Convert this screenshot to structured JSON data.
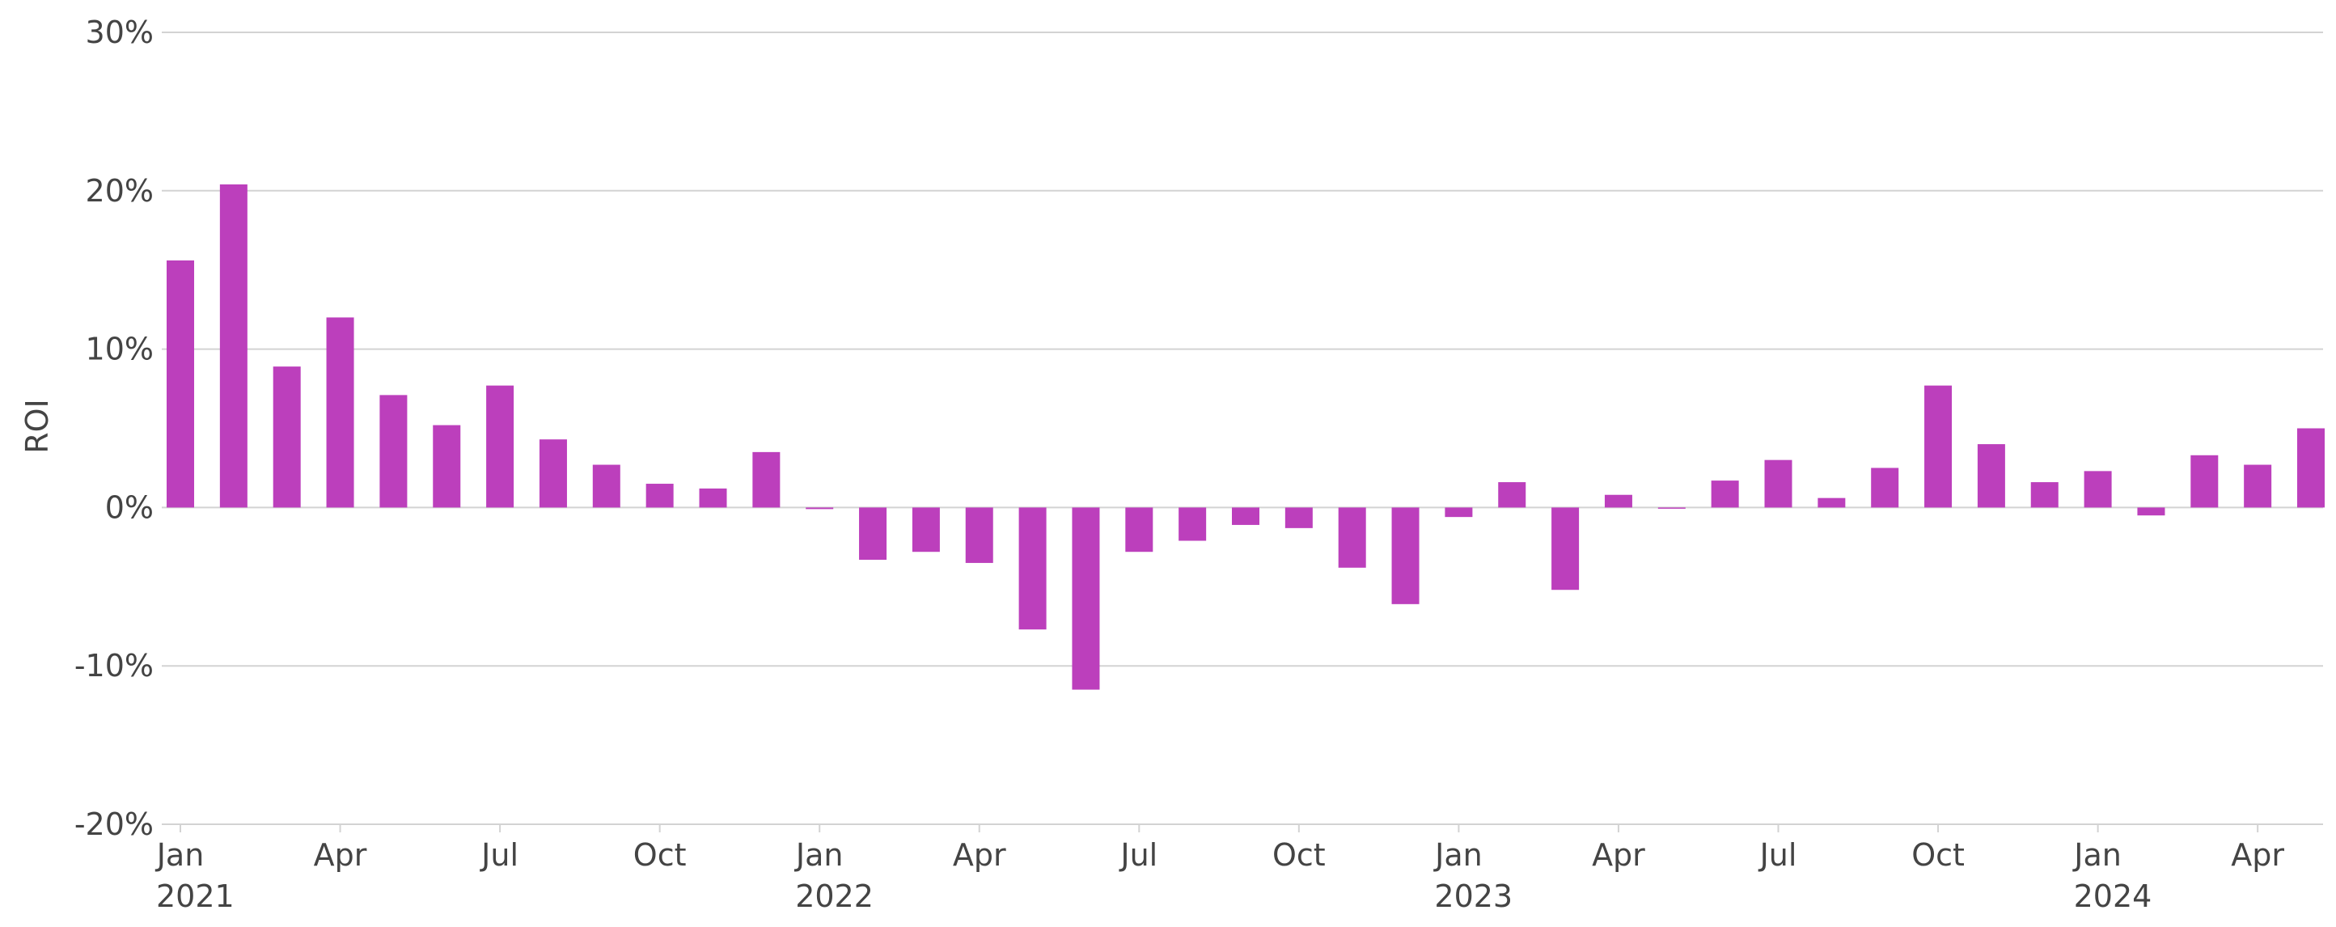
{
  "chart_data": {
    "type": "bar",
    "ylabel": "ROI",
    "xlabel": "",
    "ylim": [
      -20,
      30
    ],
    "y_ticks": [
      30,
      20,
      10,
      0,
      -10,
      -20
    ],
    "y_tick_labels": [
      "30%",
      "20%",
      "10%",
      "0%",
      "-10%",
      "-20%"
    ],
    "x_tick_labels": [
      {
        "month": "Jan",
        "year": "2021",
        "date": "2021-01"
      },
      {
        "month": "Apr",
        "year": "",
        "date": "2021-04"
      },
      {
        "month": "Jul",
        "year": "",
        "date": "2021-07"
      },
      {
        "month": "Oct",
        "year": "",
        "date": "2021-10"
      },
      {
        "month": "Jan",
        "year": "2022",
        "date": "2022-01"
      },
      {
        "month": "Apr",
        "year": "",
        "date": "2022-04"
      },
      {
        "month": "Jul",
        "year": "",
        "date": "2022-07"
      },
      {
        "month": "Oct",
        "year": "",
        "date": "2022-10"
      },
      {
        "month": "Jan",
        "year": "2023",
        "date": "2023-01"
      },
      {
        "month": "Apr",
        "year": "",
        "date": "2023-04"
      },
      {
        "month": "Jul",
        "year": "",
        "date": "2023-07"
      },
      {
        "month": "Oct",
        "year": "",
        "date": "2023-10"
      },
      {
        "month": "Jan",
        "year": "2024",
        "date": "2024-01"
      },
      {
        "month": "Apr",
        "year": "",
        "date": "2024-04"
      }
    ],
    "grid": true,
    "legend": "none",
    "bar_color": "#bc3fbc",
    "categories": [
      "2021-01",
      "2021-02",
      "2021-03",
      "2021-04",
      "2021-05",
      "2021-06",
      "2021-07",
      "2021-08",
      "2021-09",
      "2021-10",
      "2021-11",
      "2021-12",
      "2022-01",
      "2022-02",
      "2022-03",
      "2022-04",
      "2022-05",
      "2022-06",
      "2022-07",
      "2022-08",
      "2022-09",
      "2022-10",
      "2022-11",
      "2022-12",
      "2023-01",
      "2023-02",
      "2023-03",
      "2023-04",
      "2023-05",
      "2023-06",
      "2023-07",
      "2023-08",
      "2023-09",
      "2023-10",
      "2023-11",
      "2023-12",
      "2024-01",
      "2024-02",
      "2024-03",
      "2024-04",
      "2024-05"
    ],
    "values": [
      15.6,
      20.4,
      8.9,
      12.0,
      7.1,
      5.2,
      7.7,
      4.3,
      2.7,
      1.5,
      1.2,
      3.5,
      -0.1,
      -3.3,
      -2.8,
      -3.5,
      -7.7,
      -11.5,
      -2.8,
      -2.1,
      -1.1,
      -1.3,
      -3.8,
      -6.1,
      -0.6,
      1.6,
      -5.2,
      0.8,
      0.0,
      1.7,
      3.0,
      0.6,
      2.5,
      7.7,
      4.0,
      1.6,
      2.3,
      -0.5,
      3.3,
      2.7,
      5.0
    ]
  }
}
